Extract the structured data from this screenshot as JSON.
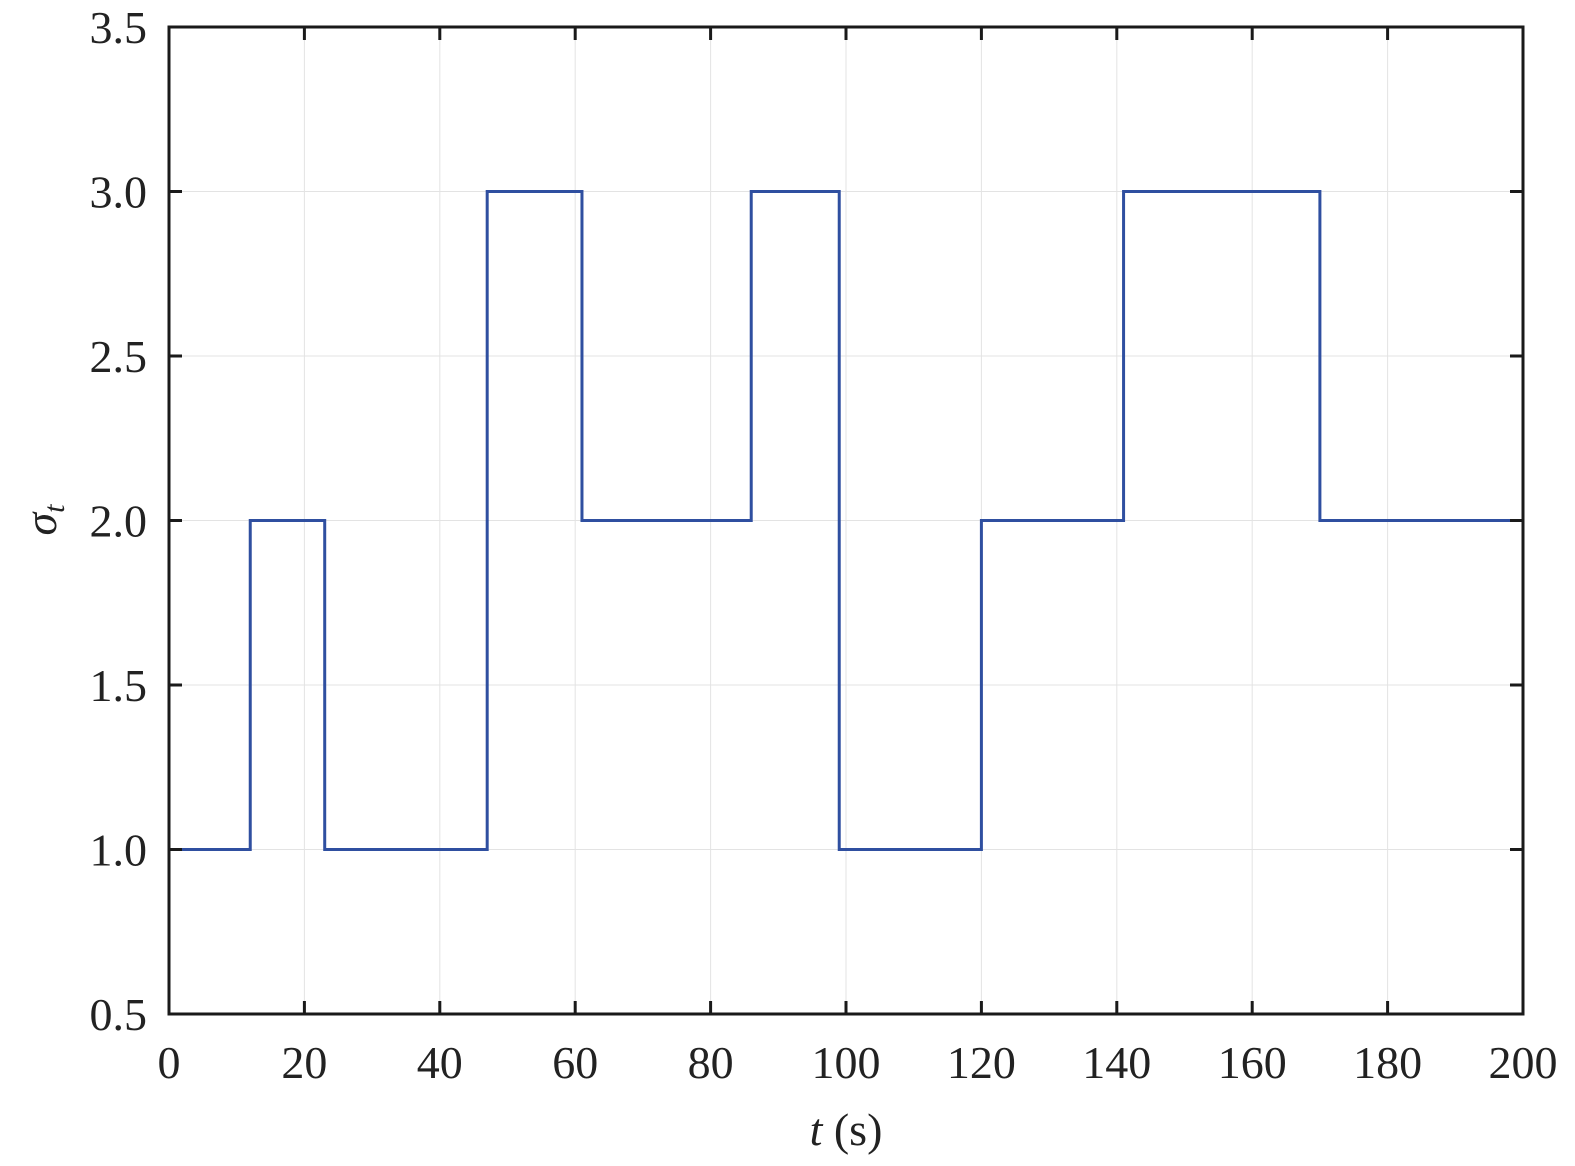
{
  "chart_data": {
    "type": "line",
    "step": true,
    "xlabel": {
      "var": "t",
      "unit": "(s)"
    },
    "ylabel": {
      "symbol": "σ",
      "subscript": "t"
    },
    "xlim": [
      0,
      200
    ],
    "ylim": [
      0.5,
      3.5
    ],
    "xticks": [
      0,
      20,
      40,
      60,
      80,
      100,
      120,
      140,
      160,
      180,
      200
    ],
    "xtick_labels": [
      "0",
      "20",
      "40",
      "60",
      "80",
      "100",
      "120",
      "140",
      "160",
      "180",
      "200"
    ],
    "yticks": [
      0.5,
      1.0,
      1.5,
      2.0,
      2.5,
      3.0,
      3.5
    ],
    "ytick_labels": [
      "0.5",
      "1.0",
      "1.5",
      "2.0",
      "2.5",
      "3.0",
      "3.5"
    ],
    "grid": true,
    "colors": {
      "series": "#2f4fa0"
    },
    "series": [
      {
        "x": [
          0,
          12,
          23,
          47,
          61,
          86,
          99,
          120,
          141,
          170,
          200
        ],
        "y": [
          1,
          2,
          1,
          3,
          2,
          3,
          1,
          2,
          3,
          2,
          2
        ]
      }
    ]
  }
}
